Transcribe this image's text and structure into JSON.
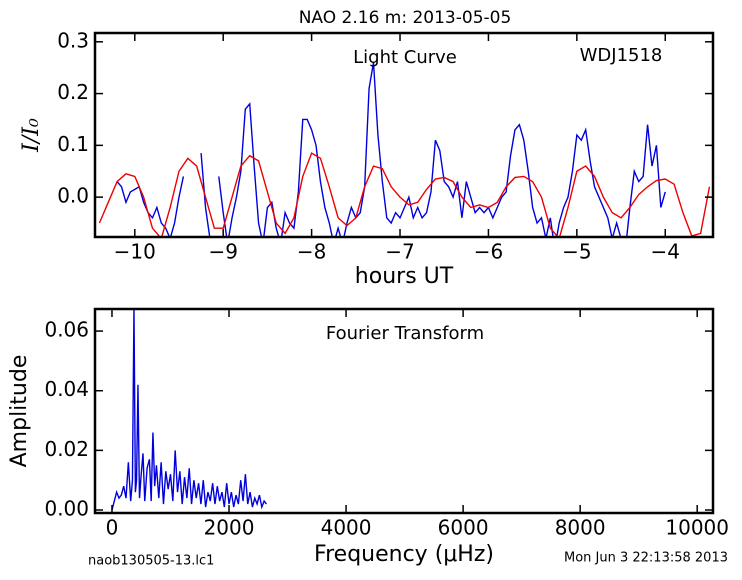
{
  "figure": {
    "title": "NAO 2.16 m:  2013-05-05",
    "footer_left": "naob130505-13.lc1",
    "footer_right": "Mon Jun  3 22:13:58 2013"
  },
  "chart_data": [
    {
      "type": "line",
      "xlabel": "hours UT",
      "ylabel": "I/I₀",
      "annotations": [
        "Light Curve",
        "WDJ1518"
      ],
      "xlim": [
        -10.45,
        -3.46
      ],
      "ylim": [
        -0.077,
        0.317
      ],
      "xticks": [
        {
          "value": -10,
          "label": "−10"
        },
        {
          "value": -9,
          "label": "−9"
        },
        {
          "value": -8,
          "label": "−8"
        },
        {
          "value": -7,
          "label": "−7"
        },
        {
          "value": -6,
          "label": "−6"
        },
        {
          "value": -5,
          "label": "−5"
        },
        {
          "value": -4,
          "label": "−4"
        }
      ],
      "yticks": [
        {
          "value": 0,
          "label": "0.0"
        },
        {
          "value": 0.1,
          "label": "0.1"
        },
        {
          "value": 0.2,
          "label": "0.2"
        },
        {
          "value": 0.3,
          "label": "0.3"
        }
      ],
      "series": [
        {
          "color": "#0000dd",
          "x": [
            -10.2,
            -10.15,
            -10.1,
            -10.05,
            -10.0,
            -9.95,
            -9.9,
            -9.85,
            -9.8,
            -9.75,
            -9.7,
            -9.65,
            -9.6,
            -9.55,
            -9.5,
            -9.45,
            -9.4,
            -9.35,
            -9.3,
            -9.25,
            -9.2,
            -9.15,
            -9.1,
            -9.05,
            -9.0,
            -8.95,
            -8.9,
            -8.85,
            -8.8,
            -8.75,
            -8.7,
            -8.65,
            -8.6,
            -8.55,
            -8.5,
            -8.45,
            -8.4,
            -8.35,
            -8.3,
            -8.25,
            -8.2,
            -8.15,
            -8.1,
            -8.05,
            -8.0,
            -7.95,
            -7.9,
            -7.85,
            -7.8,
            -7.75,
            -7.7,
            -7.65,
            -7.6,
            -7.55,
            -7.5,
            -7.45,
            -7.4,
            -7.35,
            -7.3,
            -7.25,
            -7.2,
            -7.15,
            -7.1,
            -7.05,
            -7.0,
            -6.95,
            -6.9,
            -6.85,
            -6.8,
            -6.75,
            -6.7,
            -6.65,
            -6.6,
            -6.55,
            -6.5,
            -6.45,
            -6.4,
            -6.35,
            -6.3,
            -6.25,
            -6.2,
            -6.15,
            -6.1,
            -6.05,
            -6.0,
            -5.95,
            -5.9,
            -5.85,
            -5.8,
            -5.75,
            -5.7,
            -5.65,
            -5.6,
            -5.55,
            -5.5,
            -5.45,
            -5.4,
            -5.35,
            -5.3,
            -5.25,
            -5.2,
            -5.15,
            -5.1,
            -5.05,
            -5.0,
            -4.95,
            -4.9,
            -4.85,
            -4.8,
            -4.75,
            -4.7,
            -4.65,
            -4.6,
            -4.55,
            -4.5,
            -4.45,
            -4.4,
            -4.35,
            -4.3,
            -4.25,
            -4.2,
            -4.15,
            -4.1,
            -4.05,
            -4.0
          ],
          "values": [
            0.03,
            0.02,
            -0.01,
            0.01,
            0.015,
            0.02,
            -0.01,
            -0.03,
            -0.04,
            -0.02,
            -0.05,
            -0.06,
            -0.08,
            -0.05,
            0.0,
            0.04,
            null,
            null,
            null,
            0.085,
            -0.02,
            -0.08,
            null,
            0.04,
            -0.03,
            -0.09,
            -0.04,
            0.0,
            0.05,
            0.17,
            0.18,
            0.06,
            -0.05,
            -0.09,
            -0.02,
            -0.01,
            -0.06,
            -0.09,
            -0.03,
            -0.05,
            -0.06,
            0.01,
            0.15,
            0.15,
            0.13,
            0.1,
            0.03,
            -0.02,
            -0.05,
            -0.09,
            -0.06,
            -0.09,
            -0.05,
            -0.02,
            -0.04,
            -0.03,
            0.02,
            0.21,
            0.26,
            0.12,
            0.03,
            -0.04,
            -0.05,
            -0.03,
            -0.04,
            -0.02,
            0.0,
            -0.04,
            -0.02,
            -0.04,
            -0.03,
            0.01,
            0.11,
            0.09,
            0.03,
            0.02,
            0.0,
            0.03,
            -0.04,
            0.03,
            0.0,
            -0.03,
            -0.02,
            -0.03,
            -0.02,
            -0.04,
            -0.02,
            0.0,
            0.01,
            0.08,
            0.13,
            0.14,
            0.11,
            0.05,
            -0.02,
            -0.05,
            -0.04,
            -0.08,
            -0.04,
            -0.1,
            -0.05,
            -0.02,
            0.0,
            0.05,
            0.12,
            0.11,
            0.13,
            0.07,
            0.02,
            0.0,
            -0.02,
            -0.04,
            -0.08,
            -0.05,
            -0.08,
            -0.1,
            -0.02,
            0.05,
            0.03,
            0.04,
            0.14,
            0.06,
            0.1,
            -0.02,
            0.01
          ]
        },
        {
          "color": "#ee0000",
          "x": [
            -10.4,
            -10.3,
            -10.2,
            -10.1,
            -10.0,
            -9.9,
            -9.8,
            -9.7,
            -9.6,
            -9.5,
            -9.4,
            -9.3,
            -9.2,
            -9.1,
            -9.0,
            -8.9,
            -8.8,
            -8.7,
            -8.6,
            -8.5,
            -8.4,
            -8.3,
            -8.2,
            -8.1,
            -8.0,
            -7.9,
            -7.8,
            -7.7,
            -7.6,
            -7.5,
            -7.4,
            -7.3,
            -7.2,
            -7.1,
            -7.0,
            -6.9,
            -6.8,
            -6.7,
            -6.6,
            -6.5,
            -6.4,
            -6.3,
            -6.2,
            -6.1,
            -6.0,
            -5.9,
            -5.8,
            -5.7,
            -5.6,
            -5.5,
            -5.4,
            -5.3,
            -5.2,
            -5.1,
            -5.0,
            -4.9,
            -4.8,
            -4.7,
            -4.6,
            -4.5,
            -4.4,
            -4.3,
            -4.2,
            -4.1,
            -4.0,
            -3.9,
            -3.8,
            -3.7,
            -3.6,
            -3.5
          ],
          "values": [
            -0.05,
            -0.01,
            0.03,
            0.045,
            0.04,
            0.0,
            -0.06,
            -0.08,
            -0.02,
            0.05,
            0.075,
            0.06,
            0.0,
            -0.06,
            -0.06,
            0.0,
            0.06,
            0.08,
            0.07,
            0.01,
            -0.05,
            -0.07,
            -0.04,
            0.04,
            0.085,
            0.075,
            0.02,
            -0.04,
            -0.055,
            -0.04,
            0.02,
            0.06,
            0.055,
            0.02,
            0.0,
            -0.015,
            -0.01,
            0.015,
            0.035,
            0.038,
            0.03,
            0.0,
            -0.02,
            -0.015,
            -0.02,
            -0.01,
            0.02,
            0.038,
            0.04,
            0.03,
            0.0,
            -0.06,
            -0.08,
            -0.02,
            0.05,
            0.06,
            0.04,
            0.0,
            -0.03,
            -0.04,
            -0.02,
            0.005,
            0.02,
            0.032,
            0.035,
            0.025,
            -0.03,
            -0.075,
            -0.07,
            0.02
          ]
        }
      ]
    },
    {
      "type": "line",
      "xlabel": "Frequency (μHz)",
      "ylabel": "Amplitude",
      "annotations": [
        "Fourier Transform"
      ],
      "xlim": [
        -290,
        10270
      ],
      "ylim": [
        -0.001,
        0.0674
      ],
      "xticks": [
        0,
        2000,
        4000,
        6000,
        8000,
        10000
      ],
      "yticks": [
        {
          "value": 0,
          "label": "0.00"
        },
        {
          "value": 0.02,
          "label": "0.02"
        },
        {
          "value": 0.04,
          "label": "0.04"
        },
        {
          "value": 0.06,
          "label": "0.06"
        }
      ],
      "series": [
        {
          "color": "#0000dd",
          "x": [
            0,
            40,
            80,
            120,
            160,
            200,
            240,
            280,
            320,
            350,
            376,
            400,
            420,
            444,
            470,
            500,
            530,
            560,
            600,
            640,
            670,
            700,
            730,
            760,
            800,
            840,
            880,
            920,
            960,
            1000,
            1040,
            1080,
            1120,
            1160,
            1200,
            1240,
            1280,
            1320,
            1360,
            1400,
            1440,
            1480,
            1520,
            1560,
            1600,
            1640,
            1680,
            1720,
            1760,
            1800,
            1840,
            1880,
            1920,
            1960,
            2000,
            2040,
            2080,
            2120,
            2160,
            2200,
            2240,
            2280,
            2320,
            2360,
            2400,
            2440,
            2480,
            2520,
            2560,
            2600,
            2640
          ],
          "values": [
            0.0,
            0.003,
            0.006,
            0.004,
            0.005,
            0.008,
            0.004,
            0.016,
            0.003,
            0.01,
            0.068,
            0.006,
            0.01,
            0.042,
            0.004,
            0.012,
            0.019,
            0.003,
            0.014,
            0.017,
            0.003,
            0.026,
            0.008,
            0.015,
            0.004,
            0.016,
            0.002,
            0.013,
            0.007,
            0.012,
            0.003,
            0.02,
            0.006,
            0.013,
            0.002,
            0.011,
            0.004,
            0.014,
            0.002,
            0.01,
            0.004,
            0.009,
            0.002,
            0.01,
            0.001,
            0.006,
            0.003,
            0.009,
            0.002,
            0.008,
            0.003,
            0.006,
            0.001,
            0.009,
            0.002,
            0.006,
            0.001,
            0.005,
            0.002,
            0.01,
            0.003,
            0.012,
            0.002,
            0.006,
            0.001,
            0.004,
            0.002,
            0.005,
            0.001,
            0.003,
            0.002
          ]
        }
      ]
    }
  ]
}
